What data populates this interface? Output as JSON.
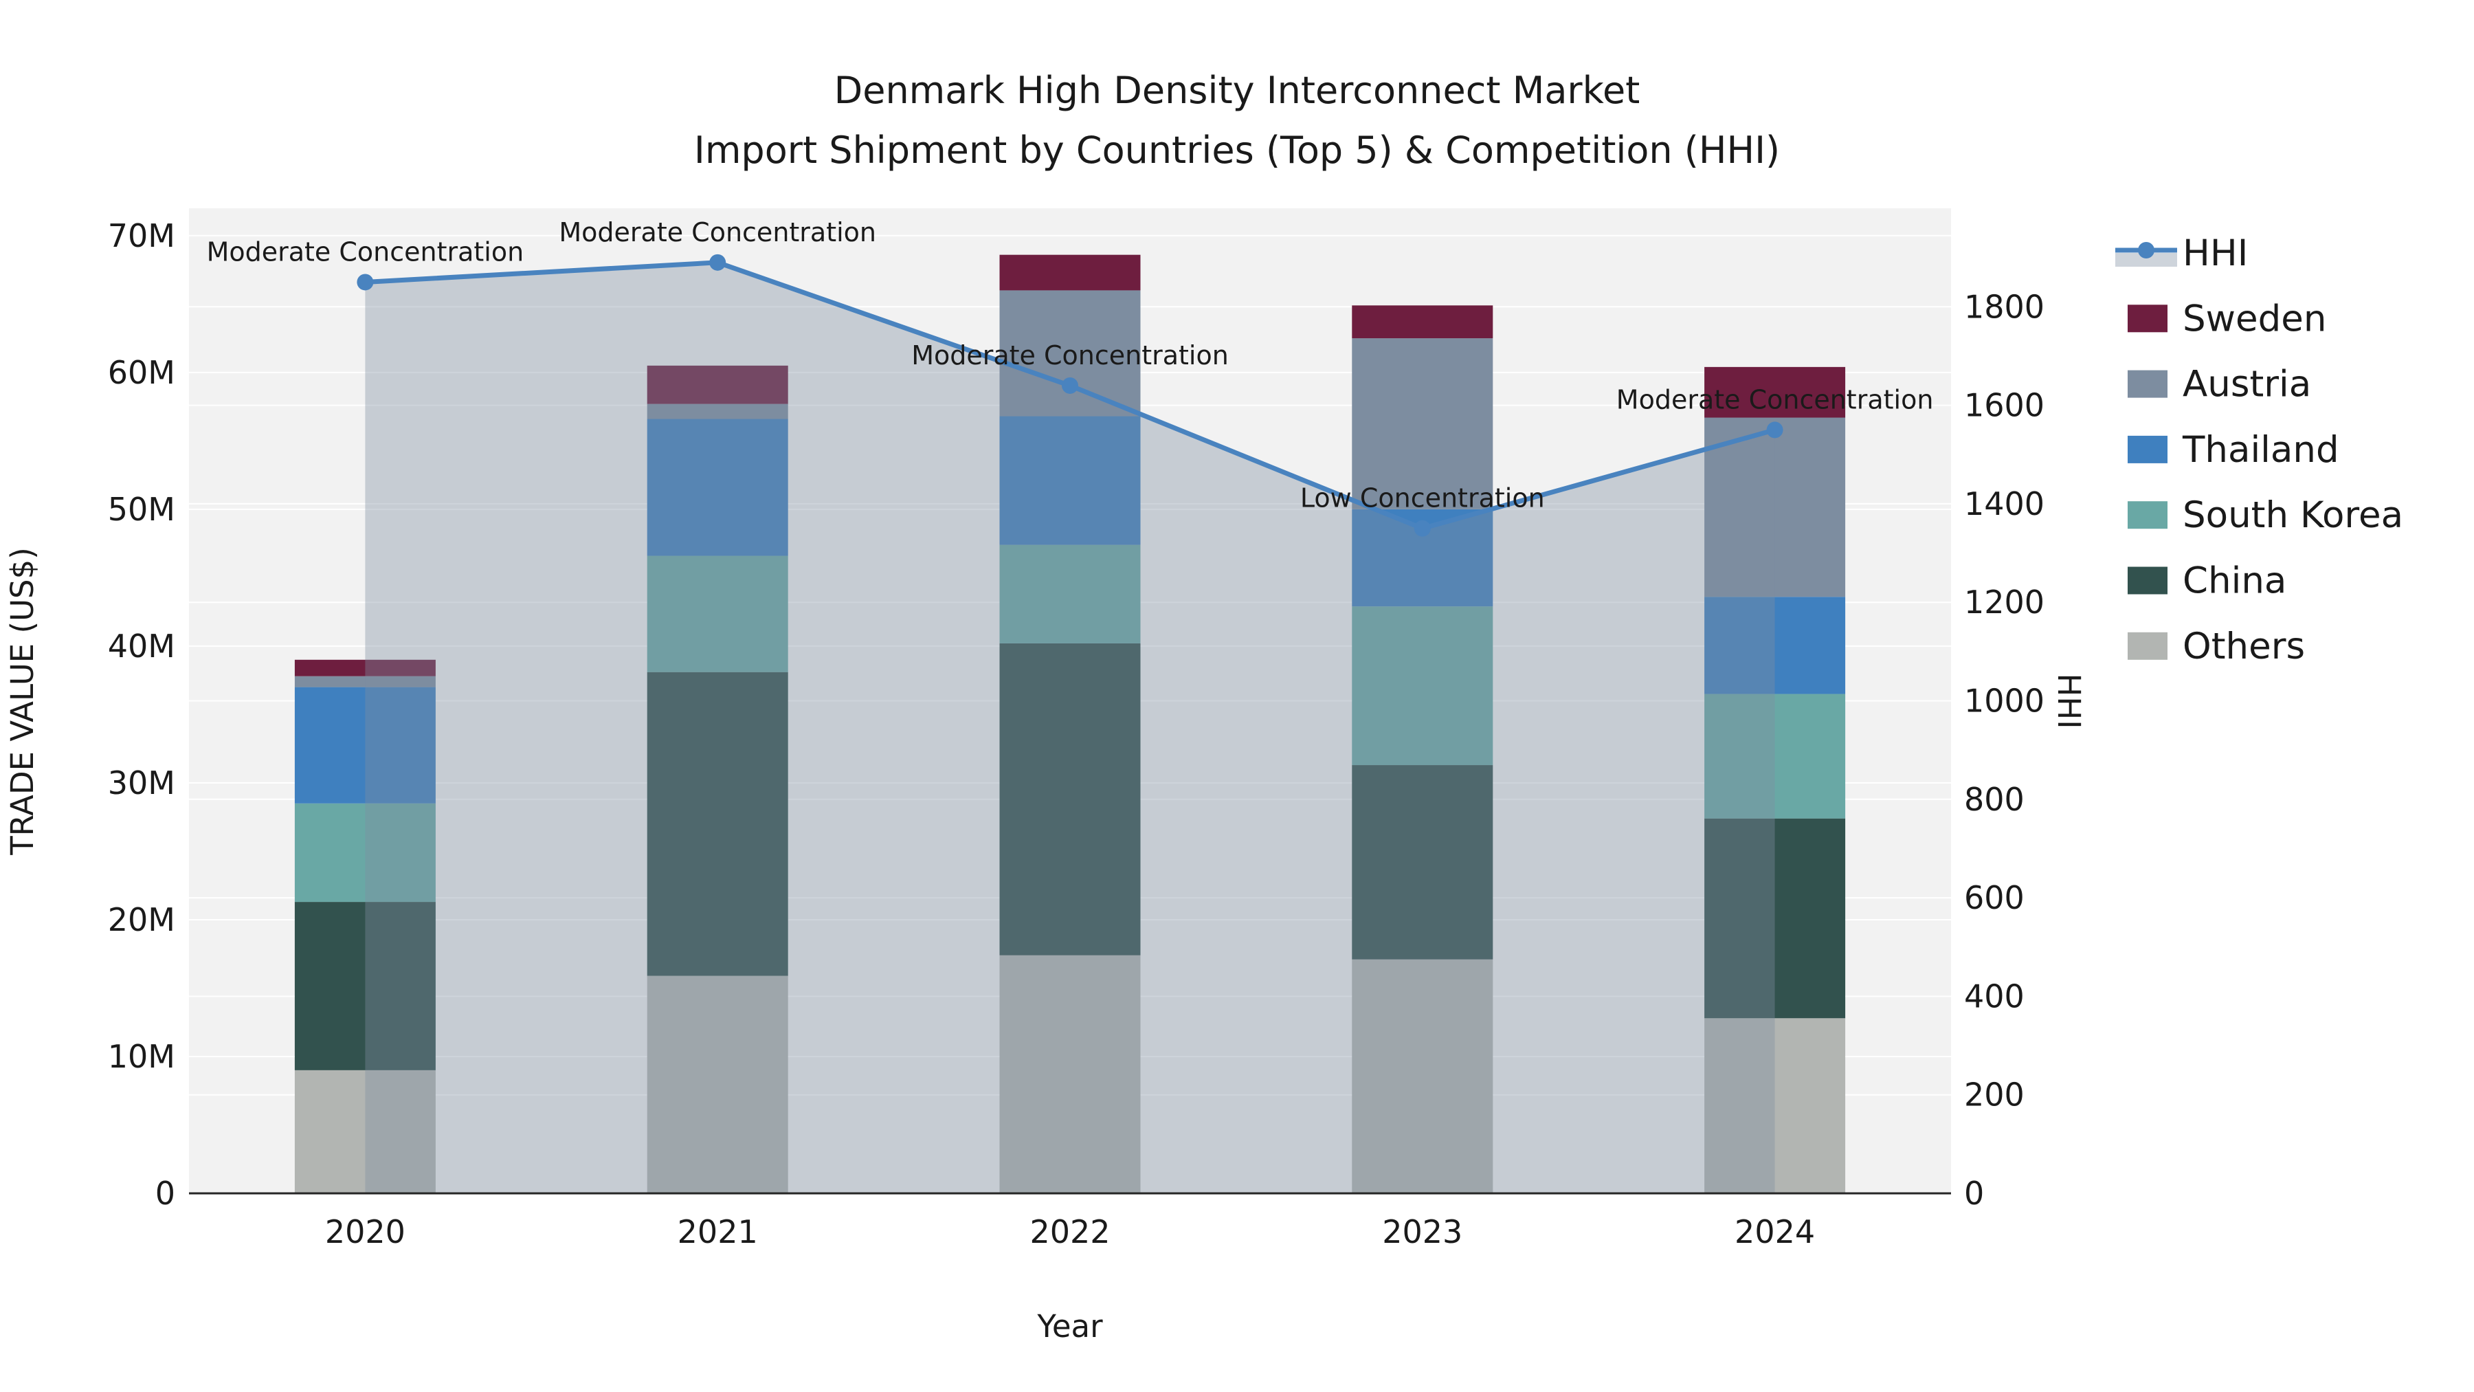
{
  "title": {
    "line1": "Denmark High Density Interconnect Market",
    "line2": "Import Shipment by Countries (Top 5) & Competition (HHI)"
  },
  "axes": {
    "x": {
      "label": "Year"
    },
    "left": {
      "label": "TRADE VALUE (US$)",
      "max": 72,
      "ticks": [
        {
          "label": "0",
          "value": 0
        },
        {
          "label": "10M",
          "value": 10
        },
        {
          "label": "20M",
          "value": 20
        },
        {
          "label": "30M",
          "value": 30
        },
        {
          "label": "40M",
          "value": 40
        },
        {
          "label": "50M",
          "value": 50
        },
        {
          "label": "60M",
          "value": 60
        },
        {
          "label": "70M",
          "value": 70
        }
      ]
    },
    "right": {
      "label": "HHI",
      "max": 2000,
      "ticks": [
        {
          "label": "0",
          "value": 0
        },
        {
          "label": "200",
          "value": 200
        },
        {
          "label": "400",
          "value": 400
        },
        {
          "label": "600",
          "value": 600
        },
        {
          "label": "800",
          "value": 800
        },
        {
          "label": "1000",
          "value": 1000
        },
        {
          "label": "1200",
          "value": 1200
        },
        {
          "label": "1400",
          "value": 1400
        },
        {
          "label": "1600",
          "value": 1600
        },
        {
          "label": "1800",
          "value": 1800
        }
      ]
    }
  },
  "legend": {
    "items": [
      {
        "label": "HHI",
        "type": "line",
        "color": "#4983bf"
      },
      {
        "label": "Sweden",
        "type": "swatch",
        "color": "#6e1e3f"
      },
      {
        "label": "Austria",
        "type": "swatch",
        "color": "#7d8da0"
      },
      {
        "label": "Thailand",
        "type": "swatch",
        "color": "#3f80bf"
      },
      {
        "label": "South Korea",
        "type": "swatch",
        "color": "#69a8a5"
      },
      {
        "label": "China",
        "type": "swatch",
        "color": "#32524e"
      },
      {
        "label": "Others",
        "type": "swatch",
        "color": "#b2b5b2"
      }
    ]
  },
  "chart_data": {
    "type": "stacked-bar+line",
    "title": "Denmark High Density Interconnect Market — Import Shipment by Countries (Top 5) & Competition (HHI)",
    "categories": [
      "2020",
      "2021",
      "2022",
      "2023",
      "2024"
    ],
    "unit": "US$ millions (left axis), HHI index (right axis)",
    "stack_order_bottom_to_top": [
      "Others",
      "China",
      "South Korea",
      "Thailand",
      "Austria",
      "Sweden"
    ],
    "series": [
      {
        "name": "Others",
        "color": "#b2b5b2",
        "values": [
          9.0,
          15.9,
          17.4,
          17.1,
          12.8
        ]
      },
      {
        "name": "China",
        "color": "#32524e",
        "values": [
          12.3,
          22.2,
          22.8,
          14.2,
          14.6
        ]
      },
      {
        "name": "South Korea",
        "color": "#69a8a5",
        "values": [
          7.2,
          8.5,
          7.2,
          11.6,
          9.1
        ]
      },
      {
        "name": "Thailand",
        "color": "#3f80bf",
        "values": [
          8.5,
          10.0,
          9.4,
          7.1,
          7.1
        ]
      },
      {
        "name": "Austria",
        "color": "#7d8da0",
        "values": [
          0.8,
          1.1,
          9.2,
          12.5,
          13.1
        ]
      },
      {
        "name": "Sweden",
        "color": "#6e1e3f",
        "values": [
          1.2,
          2.8,
          2.6,
          2.4,
          3.7
        ]
      }
    ],
    "bar_totals": [
      39.0,
      60.5,
      68.6,
      64.9,
      60.4
    ],
    "line_series": {
      "name": "HHI",
      "axis": "right",
      "color": "#4983bf",
      "fill": "rgba(125,141,160,0.38)",
      "values": [
        1850,
        1890,
        1640,
        1350,
        1550
      ]
    },
    "annotations": [
      {
        "category": "2020",
        "text": "Moderate Concentration"
      },
      {
        "category": "2021",
        "text": "Moderate Concentration"
      },
      {
        "category": "2022",
        "text": "Moderate Concentration"
      },
      {
        "category": "2023",
        "text": "Low Concentration"
      },
      {
        "category": "2024",
        "text": "Moderate Concentration"
      }
    ],
    "ylim_left": [
      0,
      72
    ],
    "ylim_right": [
      0,
      2000
    ],
    "grid": true,
    "legend_position": "right",
    "plot_bg": "#f2f2f2",
    "grid_color": "#ffffff",
    "axis_line_color": "#262626"
  }
}
